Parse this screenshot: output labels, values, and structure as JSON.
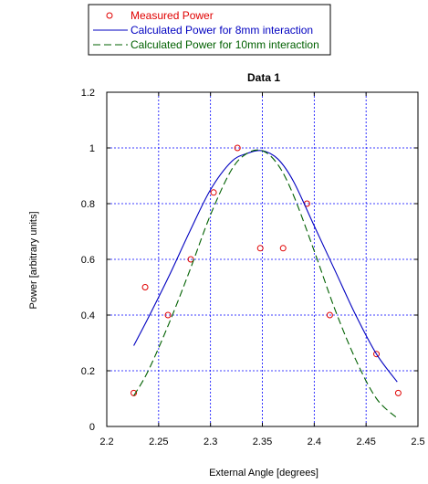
{
  "chart_data": {
    "type": "scatter",
    "title": "Data 1",
    "xlabel": "External Angle [degrees]",
    "ylabel": "Power [arbitrary units]",
    "xlim": [
      2.2,
      2.5
    ],
    "ylim": [
      0,
      1.2
    ],
    "xticks": [
      2.2,
      2.25,
      2.3,
      2.35,
      2.4,
      2.45,
      2.5
    ],
    "xtick_labels": [
      "2.2",
      "2.25",
      "2.3",
      "2.35",
      "2.4",
      "2.45",
      "2.5"
    ],
    "yticks": [
      0,
      0.2,
      0.4,
      0.6,
      0.8,
      1.0,
      1.2
    ],
    "ytick_labels": [
      "0",
      "0.2",
      "0.4",
      "0.6",
      "0.8",
      "1",
      "1.2"
    ],
    "grid": true,
    "legend_position": "top-left outside plot",
    "series": [
      {
        "name": "Measured Power",
        "kind": "markers",
        "color": "#e00000",
        "x": [
          2.226,
          2.237,
          2.259,
          2.281,
          2.303,
          2.326,
          2.348,
          2.37,
          2.393,
          2.415,
          2.46,
          2.481
        ],
        "y": [
          0.12,
          0.5,
          0.4,
          0.6,
          0.84,
          1.0,
          0.64,
          0.64,
          0.8,
          0.4,
          0.26,
          0.12
        ]
      },
      {
        "name": "Calculated Power for 8mm interaction",
        "kind": "solid-line",
        "color": "#0000c0",
        "x": [
          2.226,
          2.24,
          2.26,
          2.28,
          2.3,
          2.32,
          2.335,
          2.35,
          2.365,
          2.38,
          2.4,
          2.42,
          2.44,
          2.46,
          2.48
        ],
        "y": [
          0.29,
          0.39,
          0.54,
          0.7,
          0.85,
          0.95,
          0.98,
          0.99,
          0.96,
          0.88,
          0.72,
          0.56,
          0.4,
          0.26,
          0.16
        ]
      },
      {
        "name": "Calculated Power for 10mm interaction",
        "kind": "dashed-line",
        "color": "#006000",
        "x": [
          2.226,
          2.24,
          2.26,
          2.28,
          2.3,
          2.32,
          2.335,
          2.35,
          2.365,
          2.38,
          2.4,
          2.42,
          2.44,
          2.46,
          2.48
        ],
        "y": [
          0.11,
          0.2,
          0.37,
          0.56,
          0.76,
          0.92,
          0.98,
          0.99,
          0.94,
          0.83,
          0.63,
          0.42,
          0.24,
          0.1,
          0.03
        ]
      }
    ]
  }
}
